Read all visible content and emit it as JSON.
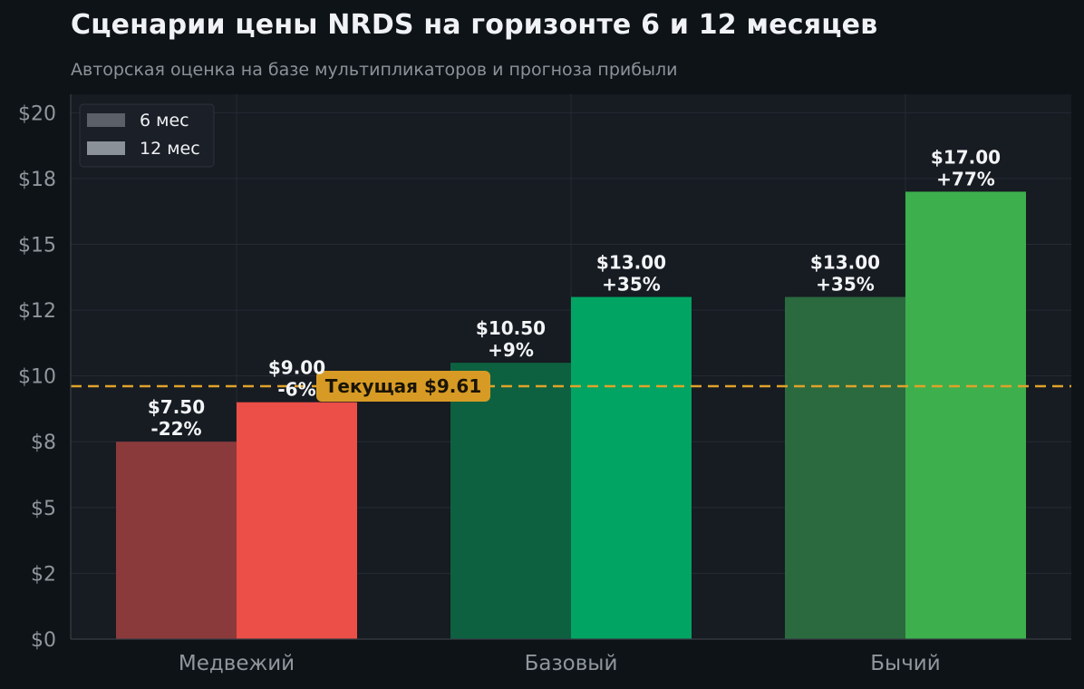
{
  "chart_data": {
    "type": "bar",
    "title": "Сценарии цены NRDS на горизонте 6 и 12 месяцев",
    "subtitle": "Авторская оценка на базе мультипликаторов и прогноза прибыли",
    "categories": [
      "Медвежий",
      "Базовый",
      "Бычий"
    ],
    "series": [
      {
        "name": "6 мес",
        "values": [
          7.5,
          10.5,
          13.0
        ],
        "labels": [
          "$7.50",
          "$10.50",
          "$13.00"
        ],
        "changes": [
          "-22%",
          "+9%",
          "+35%"
        ],
        "colors": [
          "#8b3a3b",
          "#0d6140",
          "#2a6a3e"
        ]
      },
      {
        "name": "12 мес",
        "values": [
          9.0,
          13.0,
          17.0
        ],
        "labels": [
          "$9.00",
          "$13.00",
          "$17.00"
        ],
        "changes": [
          "-6%",
          "+35%",
          "+77%"
        ],
        "colors": [
          "#eb4f48",
          "#01a463",
          "#3daf4d"
        ]
      }
    ],
    "reference_line": {
      "value": 9.61,
      "label": "Текущая $9.61",
      "color": "#e0a22a"
    },
    "yticks": [
      0,
      2.5,
      5,
      7.5,
      10,
      12.5,
      15,
      17.5,
      20
    ],
    "ytick_labels": [
      "$0",
      "$2",
      "$5",
      "$8",
      "$10",
      "$12",
      "$15",
      "$18",
      "$20"
    ],
    "ylim": [
      0,
      20.7
    ],
    "legend": {
      "placement": "top-left",
      "colors": [
        "#5b5f68",
        "#8a9199"
      ]
    },
    "grid": true
  }
}
